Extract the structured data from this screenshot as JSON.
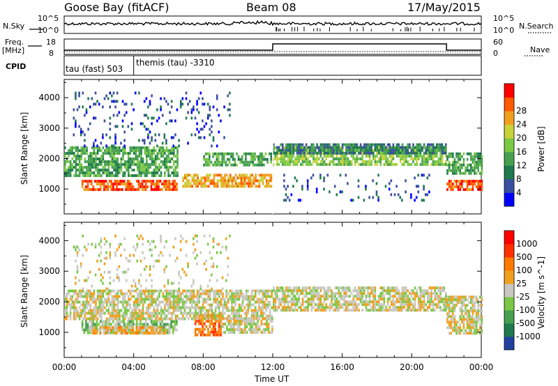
{
  "header": {
    "station": "Goose Bay (fitACF)",
    "beam": "Beam 08",
    "date": "17/May/2015"
  },
  "panels": {
    "nsky_label": "N.Sky",
    "nsearch_label": "N.Search",
    "freq_label_top": "Freq.",
    "freq_label_bottom": "[MHz]",
    "nave_label": "Nave",
    "cpid_label": "CPID",
    "nsky_ticks": [
      "10^5",
      "10^0"
    ],
    "nsearch_ticks": [
      "10^5",
      "10^0"
    ],
    "freq_ticks": [
      "18",
      "8"
    ],
    "nave_ticks": [
      "60",
      "0"
    ],
    "cpid_segments": [
      {
        "text": "tau (fast) 503",
        "start": 0,
        "end": 4
      },
      {
        "text": "themis (tau) -3310",
        "start": 4,
        "end": 24
      }
    ]
  },
  "chart_data": [
    {
      "type": "heatmap",
      "name": "power",
      "ylabel": "Slant Range [km]",
      "yticks": [
        1000,
        2000,
        3000,
        4000
      ],
      "ylim": [
        180,
        4600
      ],
      "xlim_hours": [
        0,
        24
      ],
      "colorbar_label": "Power [dB]",
      "colorbar_ticks": [
        "4",
        "8",
        "12",
        "16",
        "20",
        "24",
        "28"
      ],
      "colors": [
        "#0000ff",
        "#3a4fa0",
        "#1f7a4d",
        "#47a050",
        "#7ac845",
        "#c8d23a",
        "#f0a01e",
        "#ff5a00",
        "#ff0000"
      ],
      "regions": [
        {
          "t0": 1.0,
          "t1": 6.5,
          "r0": 1000,
          "r1": 1300,
          "level": 7
        },
        {
          "t0": 6.8,
          "t1": 12.0,
          "r0": 1100,
          "r1": 1500,
          "level": 6
        },
        {
          "t0": 0.0,
          "t1": 6.5,
          "r0": 1400,
          "r1": 2400,
          "level": 3
        },
        {
          "t0": 8.0,
          "t1": 12.0,
          "r0": 1800,
          "r1": 2200,
          "level": 3
        },
        {
          "t0": 12.0,
          "t1": 22.0,
          "r0": 1800,
          "r1": 2400,
          "level": 4
        },
        {
          "t0": 12.0,
          "t1": 22.0,
          "r0": 2200,
          "r1": 2500,
          "level": 2
        },
        {
          "t0": 22.0,
          "t1": 24.0,
          "r0": 1000,
          "r1": 1300,
          "level": 7
        },
        {
          "t0": 22.0,
          "t1": 24.0,
          "r0": 1500,
          "r1": 2200,
          "level": 3
        },
        {
          "t0": 0.5,
          "t1": 9.5,
          "r0": 2400,
          "r1": 4200,
          "level": 1,
          "sparse": true
        },
        {
          "t0": 12.5,
          "t1": 21.0,
          "r0": 600,
          "r1": 1500,
          "level": 1,
          "sparse": true
        }
      ]
    },
    {
      "type": "heatmap",
      "name": "velocity",
      "ylabel": "Slant Range [km]",
      "yticks": [
        1000,
        2000,
        3000,
        4000
      ],
      "ylim": [
        180,
        4600
      ],
      "xlim_hours": [
        0,
        24
      ],
      "colorbar_label": "Velocity [m s^-1]",
      "colorbar_ticks": [
        "1000",
        "500",
        "100",
        "25",
        "-25",
        "-100",
        "-500",
        "-1000"
      ],
      "colors": [
        "#2040a0",
        "#1f7a4d",
        "#47a050",
        "#7ac845",
        "#c8c8c0",
        "#f0a01e",
        "#ff7a00",
        "#ff3000",
        "#ff0000"
      ],
      "regions": [
        {
          "t0": 1.0,
          "t1": 6.5,
          "r0": 1000,
          "r1": 1400,
          "level": 3
        },
        {
          "t0": 1.5,
          "t1": 6.0,
          "r0": 1000,
          "r1": 1200,
          "level": 5
        },
        {
          "t0": 7.5,
          "t1": 9.0,
          "r0": 950,
          "r1": 1600,
          "level": 6
        },
        {
          "t0": 0.0,
          "t1": 12.0,
          "r0": 1400,
          "r1": 2400,
          "level": 4
        },
        {
          "t0": 9.0,
          "t1": 12.0,
          "r0": 1000,
          "r1": 1500,
          "level": 4
        },
        {
          "t0": 12.0,
          "t1": 22.0,
          "r0": 1700,
          "r1": 2500,
          "level": 4
        },
        {
          "t0": 22.0,
          "t1": 24.0,
          "r0": 1000,
          "r1": 2200,
          "level": 4
        },
        {
          "t0": 0.5,
          "t1": 9.5,
          "r0": 2400,
          "r1": 4200,
          "level": 4,
          "sparse": true
        }
      ]
    }
  ],
  "xaxis": {
    "ticks": [
      "00:00",
      "04:00",
      "08:00",
      "12:00",
      "16:00",
      "20:00",
      "00:00"
    ],
    "label": "Time UT"
  }
}
